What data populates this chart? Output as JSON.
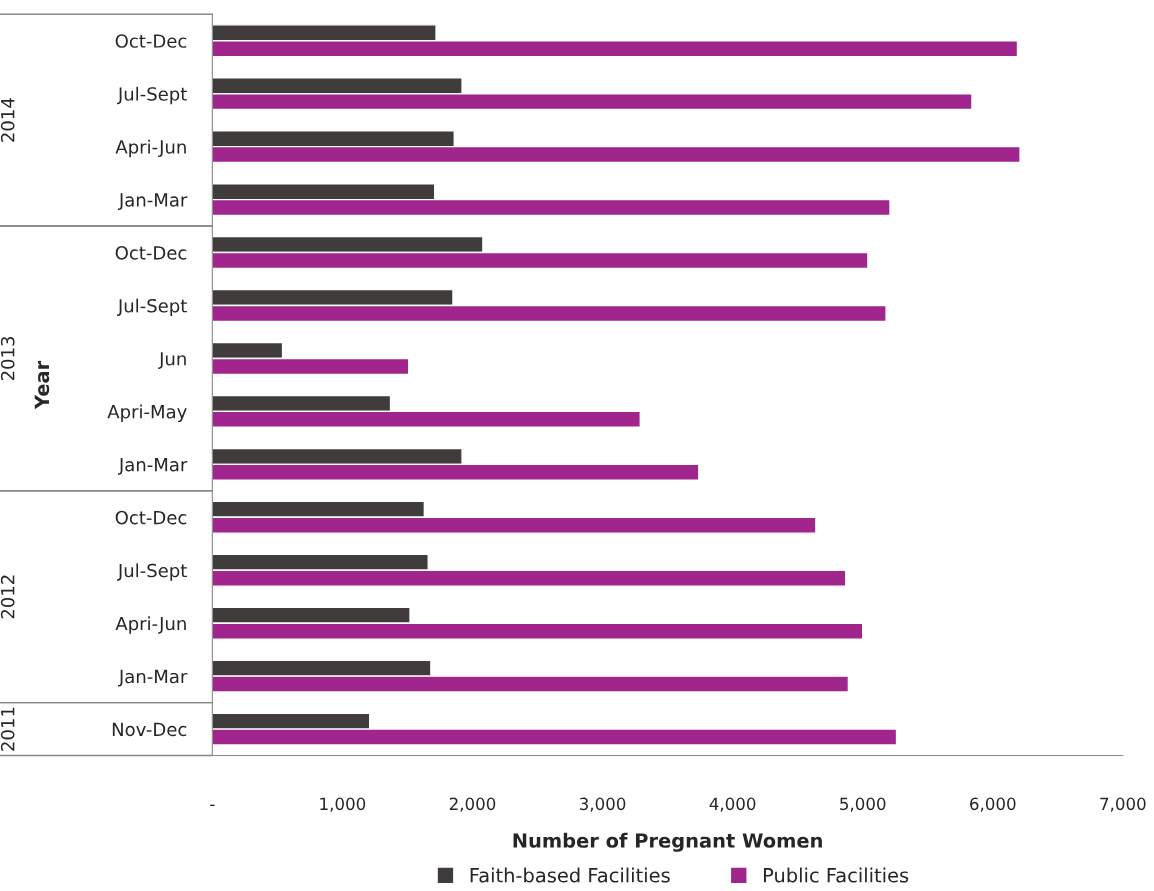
{
  "chart_data": {
    "type": "bar",
    "orientation": "horizontal",
    "xlabel": "Number of Pregnant Women",
    "ylabel": "Year",
    "categories": [
      "Oct-Dec",
      "Jul-Sept",
      "Apri-Jun",
      "Jan-Mar",
      "Oct-Dec",
      "Jul-Sept",
      "Jun",
      "Apri-May",
      "Jan-Mar",
      "Oct-Dec",
      "Jul-Sept",
      "Apri-Jun",
      "Jan-Mar",
      "Nov-Dec"
    ],
    "series": [
      {
        "name": "Faith-based Facilities",
        "color": "#403c3c",
        "values": [
          1720,
          1920,
          1860,
          1710,
          2080,
          1850,
          540,
          1370,
          1920,
          1630,
          1660,
          1520,
          1680,
          1210
        ]
      },
      {
        "name": "Public Facilities",
        "color": "#a0258c",
        "values": [
          6190,
          5840,
          6210,
          5210,
          5040,
          5180,
          1510,
          3290,
          3740,
          4640,
          4870,
          5000,
          4890,
          5260
        ]
      }
    ],
    "xlim": [
      0,
      7000
    ],
    "xticks": [
      {
        "value": 0,
        "label": "-"
      },
      {
        "value": 1000,
        "label": "1,000"
      },
      {
        "value": 2000,
        "label": "2,000"
      },
      {
        "value": 3000,
        "label": "3,000"
      },
      {
        "value": 4000,
        "label": "4,000"
      },
      {
        "value": 5000,
        "label": "5,000"
      },
      {
        "value": 6000,
        "label": "6,000"
      },
      {
        "value": 7000,
        "label": "7,000"
      }
    ],
    "annotations": [
      "2014",
      "2013",
      "2012",
      "2011"
    ],
    "grid": false,
    "legend": "bottom",
    "marker": "square"
  }
}
